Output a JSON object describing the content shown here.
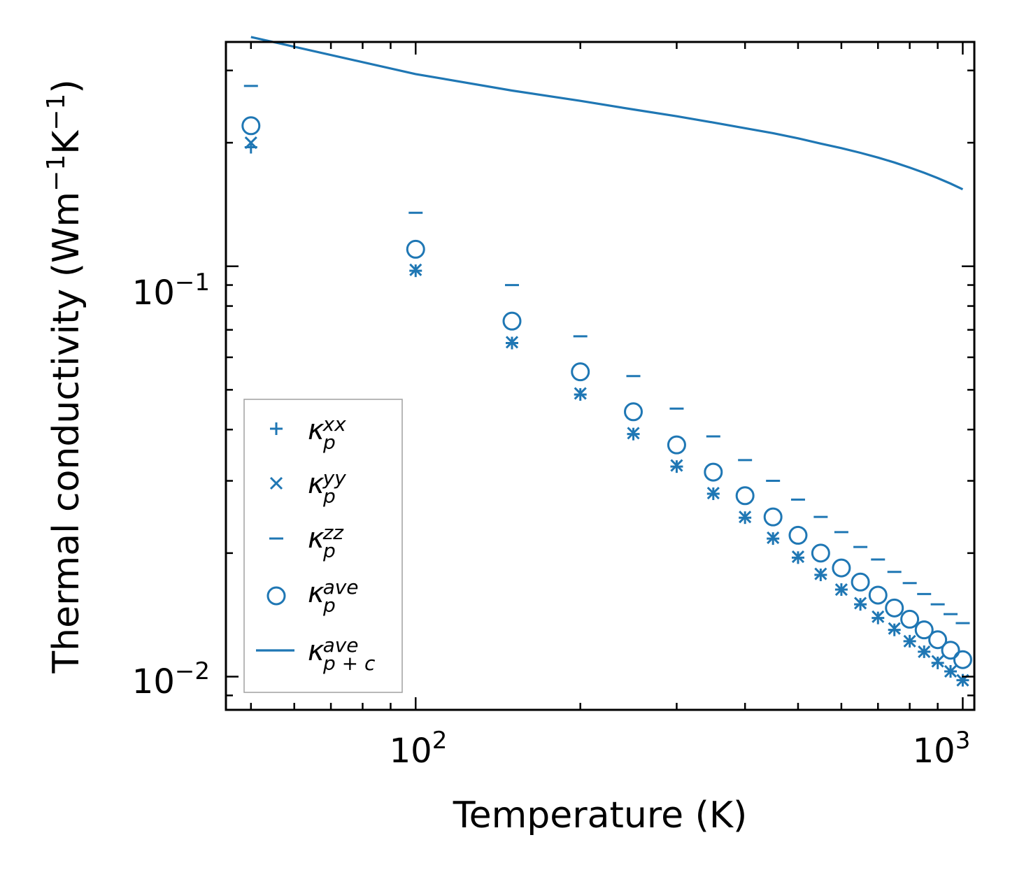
{
  "chart_data": {
    "type": "scatter",
    "title": "",
    "xlabel": "Temperature (K)",
    "ylabel_base": "Thermal conductivity (Wm",
    "ylabel_mid": "K",
    "ylabel_end": ")",
    "ylabel_exp": "−1",
    "xscale": "log",
    "yscale": "log",
    "xlim": [
      45,
      1050
    ],
    "ylim": [
      0.0083,
      0.352
    ],
    "x_ticks": [
      {
        "value": 100,
        "base": "10",
        "exp": "2"
      },
      {
        "value": 1000,
        "base": "10",
        "exp": "3"
      }
    ],
    "y_ticks": [
      {
        "value": 0.01,
        "base": "10",
        "exp": "−2"
      },
      {
        "value": 0.1,
        "base": "10",
        "exp": "−1"
      }
    ],
    "color": "#1f77b4",
    "legend_position": "lower-left",
    "x": [
      50,
      100,
      150,
      200,
      250,
      300,
      350,
      400,
      450,
      500,
      550,
      600,
      650,
      700,
      750,
      800,
      850,
      900,
      950,
      1000
    ],
    "series": [
      {
        "name": "kxx",
        "symbol": "κ",
        "sub": "p",
        "sup": "xx",
        "marker": "plus",
        "values": [
          0.195,
          0.0975,
          0.065,
          0.0487,
          0.039,
          0.0325,
          0.0279,
          0.0244,
          0.0217,
          0.0195,
          0.0177,
          0.0163,
          0.015,
          0.0139,
          0.013,
          0.0122,
          0.0115,
          0.0108,
          0.0103,
          0.0098
        ]
      },
      {
        "name": "kyy",
        "symbol": "κ",
        "sub": "p",
        "sup": "yy",
        "marker": "x",
        "values": [
          0.2,
          0.098,
          0.0653,
          0.049,
          0.0392,
          0.0327,
          0.028,
          0.0245,
          0.0218,
          0.0196,
          0.0178,
          0.0163,
          0.0151,
          0.014,
          0.0131,
          0.0122,
          0.0115,
          0.0109,
          0.0103,
          0.0098
        ]
      },
      {
        "name": "kzz",
        "symbol": "κ",
        "sub": "p",
        "sup": "zz",
        "marker": "hline",
        "values": [
          0.275,
          0.135,
          0.09,
          0.0675,
          0.054,
          0.045,
          0.0385,
          0.0337,
          0.03,
          0.027,
          0.0245,
          0.0225,
          0.0207,
          0.0193,
          0.018,
          0.0169,
          0.0159,
          0.015,
          0.0142,
          0.0135
        ]
      },
      {
        "name": "kave",
        "symbol": "κ",
        "sub": "p",
        "sup": "ave",
        "marker": "circle",
        "values": [
          0.22,
          0.11,
          0.0735,
          0.0553,
          0.0442,
          0.0367,
          0.0315,
          0.0276,
          0.0245,
          0.0221,
          0.02,
          0.0184,
          0.017,
          0.0158,
          0.0147,
          0.0138,
          0.013,
          0.0123,
          0.0116,
          0.011
        ]
      }
    ],
    "line": {
      "name": "kpc",
      "symbol": "κ",
      "sub": "p + c",
      "sup": "ave",
      "x": [
        50,
        100,
        150,
        200,
        250,
        300,
        350,
        400,
        450,
        500,
        550,
        600,
        650,
        700,
        750,
        800,
        850,
        900,
        950,
        1000
      ],
      "values": [
        0.362,
        0.294,
        0.268,
        0.253,
        0.241,
        0.232,
        0.224,
        0.217,
        0.211,
        0.205,
        0.199,
        0.194,
        0.189,
        0.184,
        0.179,
        0.174,
        0.169,
        0.164,
        0.159,
        0.154
      ]
    }
  }
}
